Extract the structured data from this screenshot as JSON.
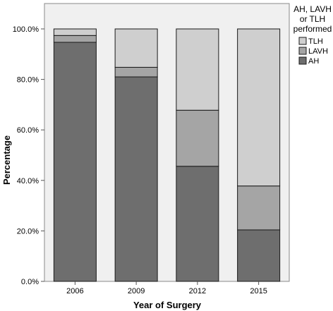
{
  "chart_data": {
    "type": "bar",
    "stacked": true,
    "normalized": true,
    "categories": [
      "2006",
      "2009",
      "2012",
      "2015"
    ],
    "series": [
      {
        "name": "AH",
        "color": "#6e6e6e",
        "values": [
          94.7,
          81.0,
          45.6,
          20.4
        ]
      },
      {
        "name": "LAVH",
        "color": "#a5a5a5",
        "values": [
          2.7,
          3.8,
          22.2,
          17.4
        ]
      },
      {
        "name": "TLH",
        "color": "#cfcfcf",
        "values": [
          2.6,
          15.2,
          32.2,
          62.2
        ]
      }
    ],
    "title": "",
    "xlabel": "Year of Surgery",
    "ylabel": "Percentage",
    "ylim": [
      0,
      100
    ],
    "yticks": [
      0,
      20,
      40,
      60,
      80,
      100
    ],
    "ytick_labels": [
      "0.0%",
      "20.0%",
      "40.0%",
      "60.0%",
      "80.0%",
      "100.0%"
    ],
    "grid": false,
    "plot_background": "#f0f0f0",
    "legend": {
      "title_lines": [
        "AH, LAVH",
        "or TLH",
        "performed"
      ],
      "position": "right",
      "order": [
        "TLH",
        "LAVH",
        "AH"
      ]
    }
  }
}
